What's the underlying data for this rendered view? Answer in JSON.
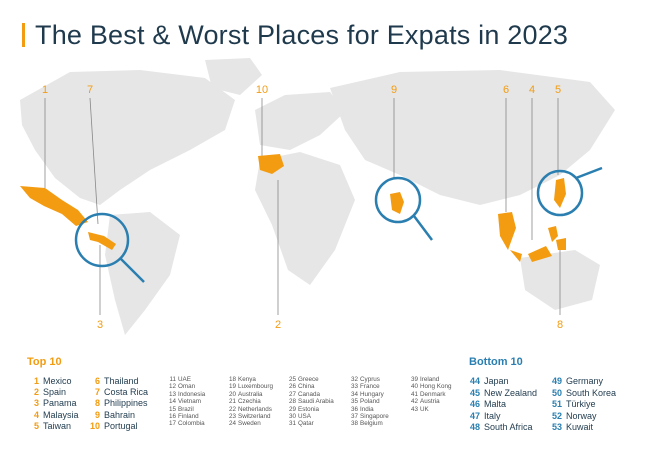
{
  "title": "The Best & Worst Places for Expats in 2023",
  "colors": {
    "accent": "#f39c12",
    "lens": "#2a7fb0",
    "land": "#e6e6e6",
    "text": "#1f3a4d"
  },
  "map_labels": [
    "1",
    "7",
    "10",
    "9",
    "6",
    "4",
    "5",
    "3",
    "2",
    "8"
  ],
  "top10": {
    "heading": "Top 10",
    "items": [
      {
        "rank": "1",
        "name": "Mexico"
      },
      {
        "rank": "2",
        "name": "Spain"
      },
      {
        "rank": "3",
        "name": "Panama"
      },
      {
        "rank": "4",
        "name": "Malaysia"
      },
      {
        "rank": "5",
        "name": "Taiwan"
      },
      {
        "rank": "6",
        "name": "Thailand"
      },
      {
        "rank": "7",
        "name": "Costa Rica"
      },
      {
        "rank": "8",
        "name": "Philippines"
      },
      {
        "rank": "9",
        "name": "Bahrain"
      },
      {
        "rank": "10",
        "name": "Portugal"
      }
    ]
  },
  "middle": [
    {
      "rank": "11",
      "name": "UAE"
    },
    {
      "rank": "12",
      "name": "Oman"
    },
    {
      "rank": "13",
      "name": "Indonesia"
    },
    {
      "rank": "14",
      "name": "Vietnam"
    },
    {
      "rank": "15",
      "name": "Brazil"
    },
    {
      "rank": "16",
      "name": "Finland"
    },
    {
      "rank": "17",
      "name": "Colombia"
    },
    {
      "rank": "18",
      "name": "Kenya"
    },
    {
      "rank": "19",
      "name": "Luxembourg"
    },
    {
      "rank": "20",
      "name": "Australia"
    },
    {
      "rank": "21",
      "name": "Czechia"
    },
    {
      "rank": "22",
      "name": "Netherlands"
    },
    {
      "rank": "23",
      "name": "Switzerland"
    },
    {
      "rank": "24",
      "name": "Sweden"
    },
    {
      "rank": "25",
      "name": "Greece"
    },
    {
      "rank": "26",
      "name": "China"
    },
    {
      "rank": "27",
      "name": "Canada"
    },
    {
      "rank": "28",
      "name": "Saudi Arabia"
    },
    {
      "rank": "29",
      "name": "Estonia"
    },
    {
      "rank": "30",
      "name": "USA"
    },
    {
      "rank": "31",
      "name": "Qatar"
    },
    {
      "rank": "32",
      "name": "Cyprus"
    },
    {
      "rank": "33",
      "name": "France"
    },
    {
      "rank": "34",
      "name": "Hungary"
    },
    {
      "rank": "35",
      "name": "Poland"
    },
    {
      "rank": "36",
      "name": "India"
    },
    {
      "rank": "37",
      "name": "Singapore"
    },
    {
      "rank": "38",
      "name": "Belgium"
    },
    {
      "rank": "39",
      "name": "Ireland"
    },
    {
      "rank": "40",
      "name": "Hong Kong"
    },
    {
      "rank": "41",
      "name": "Denmark"
    },
    {
      "rank": "42",
      "name": "Austria"
    },
    {
      "rank": "43",
      "name": "UK"
    }
  ],
  "bottom10": {
    "heading": "Bottom 10",
    "items": [
      {
        "rank": "44",
        "name": "Japan"
      },
      {
        "rank": "45",
        "name": "New Zealand"
      },
      {
        "rank": "46",
        "name": "Malta"
      },
      {
        "rank": "47",
        "name": "Italy"
      },
      {
        "rank": "48",
        "name": "South Africa"
      },
      {
        "rank": "49",
        "name": "Germany"
      },
      {
        "rank": "50",
        "name": "South Korea"
      },
      {
        "rank": "51",
        "name": "Türkiye"
      },
      {
        "rank": "52",
        "name": "Norway"
      },
      {
        "rank": "53",
        "name": "Kuwait"
      }
    ]
  }
}
